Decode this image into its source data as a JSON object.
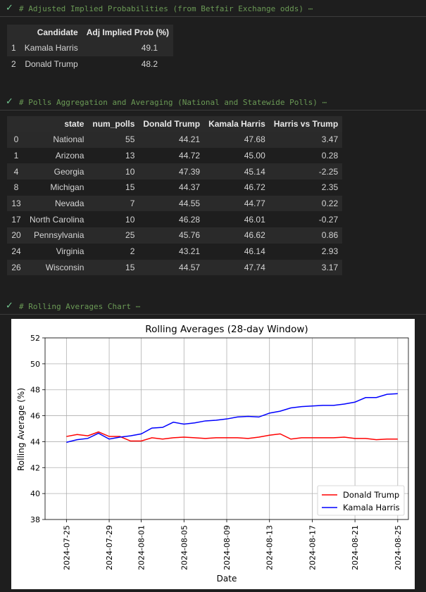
{
  "cells": [
    {
      "code": "# Adjusted Implied Probabilities (from Betfair Exchange odds) ⋯"
    },
    {
      "code": "# Polls Aggregation and Averaging (National and Statewide Polls) ⋯"
    },
    {
      "code": "# Rolling Averages Chart ⋯"
    }
  ],
  "prob_table": {
    "headers": [
      "",
      "Candidate",
      "Adj Implied Prob (%)"
    ],
    "rows": [
      [
        "1",
        "Kamala Harris",
        "49.1"
      ],
      [
        "2",
        "Donald Trump",
        "48.2"
      ]
    ]
  },
  "polls_table": {
    "headers": [
      "",
      "state",
      "num_polls",
      "Donald Trump",
      "Kamala Harris",
      "Harris vs Trump"
    ],
    "rows": [
      [
        "0",
        "National",
        "55",
        "44.21",
        "47.68",
        "3.47"
      ],
      [
        "1",
        "Arizona",
        "13",
        "44.72",
        "45.00",
        "0.28"
      ],
      [
        "4",
        "Georgia",
        "10",
        "47.39",
        "45.14",
        "-2.25"
      ],
      [
        "8",
        "Michigan",
        "15",
        "44.37",
        "46.72",
        "2.35"
      ],
      [
        "13",
        "Nevada",
        "7",
        "44.55",
        "44.77",
        "0.22"
      ],
      [
        "17",
        "North Carolina",
        "10",
        "46.28",
        "46.01",
        "-0.27"
      ],
      [
        "20",
        "Pennsylvania",
        "25",
        "45.76",
        "46.62",
        "0.86"
      ],
      [
        "24",
        "Virginia",
        "2",
        "43.21",
        "46.14",
        "2.93"
      ],
      [
        "26",
        "Wisconsin",
        "15",
        "44.57",
        "47.74",
        "3.17"
      ]
    ]
  },
  "chart_data": {
    "type": "line",
    "title": "Rolling Averages (28-day Window)",
    "xlabel": "Date",
    "ylabel": "Rolling Average (%)",
    "ylim": [
      38,
      52
    ],
    "yticks": [
      "38",
      "40",
      "42",
      "44",
      "46",
      "48",
      "50",
      "52"
    ],
    "xticks": [
      "2024-07-25",
      "2024-07-29",
      "2024-08-01",
      "2024-08-05",
      "2024-08-09",
      "2024-08-13",
      "2024-08-17",
      "2024-08-21",
      "2024-08-25"
    ],
    "xlim": [
      "2024-07-23",
      "2024-08-26"
    ],
    "grid": true,
    "legend_position": "lower right",
    "x": [
      "2024-07-25",
      "2024-07-26",
      "2024-07-27",
      "2024-07-28",
      "2024-07-29",
      "2024-07-30",
      "2024-07-31",
      "2024-08-01",
      "2024-08-02",
      "2024-08-03",
      "2024-08-04",
      "2024-08-05",
      "2024-08-06",
      "2024-08-07",
      "2024-08-08",
      "2024-08-09",
      "2024-08-10",
      "2024-08-11",
      "2024-08-12",
      "2024-08-13",
      "2024-08-14",
      "2024-08-15",
      "2024-08-16",
      "2024-08-17",
      "2024-08-18",
      "2024-08-19",
      "2024-08-20",
      "2024-08-21",
      "2024-08-22",
      "2024-08-23",
      "2024-08-24",
      "2024-08-25"
    ],
    "series": [
      {
        "name": "Donald Trump",
        "color": "#ff0000",
        "values": [
          44.4,
          44.55,
          44.45,
          44.75,
          44.4,
          44.4,
          44.05,
          44.05,
          44.3,
          44.2,
          44.3,
          44.35,
          44.3,
          44.25,
          44.3,
          44.3,
          44.3,
          44.25,
          44.35,
          44.5,
          44.6,
          44.2,
          44.3,
          44.3,
          44.3,
          44.3,
          44.35,
          44.25,
          44.25,
          44.15,
          44.2,
          44.2
        ]
      },
      {
        "name": "Kamala Harris",
        "color": "#0000ff",
        "values": [
          43.95,
          44.15,
          44.25,
          44.65,
          44.2,
          44.35,
          44.45,
          44.6,
          45.05,
          45.1,
          45.5,
          45.35,
          45.45,
          45.6,
          45.65,
          45.75,
          45.9,
          45.95,
          45.9,
          46.2,
          46.35,
          46.6,
          46.7,
          46.75,
          46.8,
          46.8,
          46.9,
          47.05,
          47.4,
          47.4,
          47.65,
          47.7
        ]
      }
    ]
  }
}
